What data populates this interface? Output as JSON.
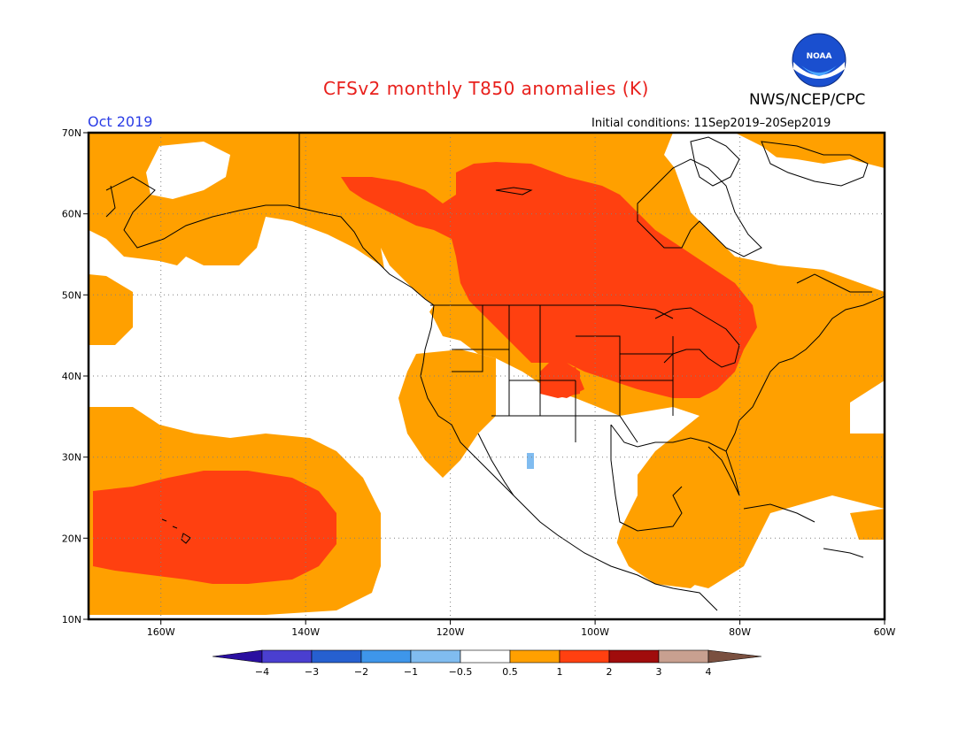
{
  "header": {
    "title": "CFSv2 monthly T850 anomalies (K)",
    "agency": "NWS/NCEP/CPC",
    "month": "Oct 2019",
    "initial_conditions": "Initial conditions: 11Sep2019–20Sep2019",
    "logo_text": "NOAA"
  },
  "map": {
    "projection": "lat-lon",
    "lon_range": [
      -170,
      -60
    ],
    "lat_range": [
      10,
      70
    ],
    "lat_labels": [
      "70N",
      "60N",
      "50N",
      "40N",
      "30N",
      "20N",
      "10N"
    ],
    "lon_labels": [
      "160W",
      "140W",
      "120W",
      "100W",
      "80W",
      "60W"
    ],
    "grid": "dotted"
  },
  "colorbar": {
    "tick_labels": [
      "−4",
      "−3",
      "−2",
      "−1",
      "−0.5",
      "0.5",
      "1",
      "2",
      "3",
      "4"
    ],
    "colors": [
      "#2a0fa0",
      "#4a3fd0",
      "#2660d0",
      "#3e96ea",
      "#80bcf0",
      "#ffffff",
      "#ffa000",
      "#ff4010",
      "#a00c0c",
      "#c8a090",
      "#7a5040"
    ]
  },
  "anomaly_regions": [
    {
      "level": "0.5–1",
      "color": "#ffa000",
      "area": "broad western/northern North America and Gulf region"
    },
    {
      "level": "1–2",
      "color": "#ff4010",
      "area": "central Canada, Great Lakes, northern Plains"
    },
    {
      "level": "1–2",
      "color": "#ff4010",
      "area": "eastern Pacific near Hawaii"
    },
    {
      "level": "-1–-0.5",
      "color": "#80bcf0",
      "area": "small spot near Baja California"
    }
  ]
}
